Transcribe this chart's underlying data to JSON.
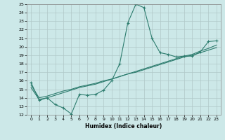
{
  "xlabel": "Humidex (Indice chaleur)",
  "ylabel": "",
  "bg_color": "#cce8e8",
  "grid_color": "#b0c8c8",
  "line_color": "#2d7c6e",
  "xlim": [
    -0.5,
    23.5
  ],
  "ylim": [
    12,
    25
  ],
  "xticks": [
    0,
    1,
    2,
    3,
    4,
    5,
    6,
    7,
    8,
    9,
    10,
    11,
    12,
    13,
    14,
    15,
    16,
    17,
    18,
    19,
    20,
    21,
    22,
    23
  ],
  "yticks": [
    12,
    13,
    14,
    15,
    16,
    17,
    18,
    19,
    20,
    21,
    22,
    23,
    24,
    25
  ],
  "line1_x": [
    0,
    1,
    2,
    3,
    4,
    5,
    6,
    7,
    8,
    9,
    10,
    11,
    12,
    13,
    14,
    15,
    16,
    17,
    18,
    19,
    20,
    21,
    22,
    23
  ],
  "line1_y": [
    15.8,
    13.7,
    14.0,
    13.2,
    12.8,
    12.1,
    14.4,
    14.3,
    14.4,
    14.9,
    16.0,
    18.0,
    22.8,
    25.0,
    24.6,
    21.0,
    19.3,
    19.1,
    18.8,
    18.9,
    18.9,
    19.4,
    20.6,
    20.7
  ],
  "line2_x": [
    0,
    1,
    2,
    3,
    4,
    5,
    6,
    7,
    8,
    9,
    10,
    11,
    12,
    13,
    14,
    15,
    16,
    17,
    18,
    19,
    20,
    21,
    22,
    23
  ],
  "line2_y": [
    15.5,
    14.0,
    14.2,
    14.5,
    14.8,
    15.0,
    15.3,
    15.5,
    15.7,
    16.0,
    16.2,
    16.5,
    16.8,
    17.0,
    17.3,
    17.6,
    17.9,
    18.2,
    18.5,
    18.8,
    19.0,
    19.3,
    19.6,
    19.9
  ],
  "line3_x": [
    0,
    1,
    2,
    3,
    4,
    5,
    6,
    7,
    8,
    9,
    10,
    11,
    12,
    13,
    14,
    15,
    16,
    17,
    18,
    19,
    20,
    21,
    22,
    23
  ],
  "line3_y": [
    15.2,
    13.8,
    14.0,
    14.3,
    14.6,
    14.9,
    15.2,
    15.4,
    15.6,
    15.9,
    16.2,
    16.5,
    16.8,
    17.1,
    17.4,
    17.7,
    18.0,
    18.3,
    18.6,
    18.9,
    19.1,
    19.5,
    19.8,
    20.2
  ]
}
